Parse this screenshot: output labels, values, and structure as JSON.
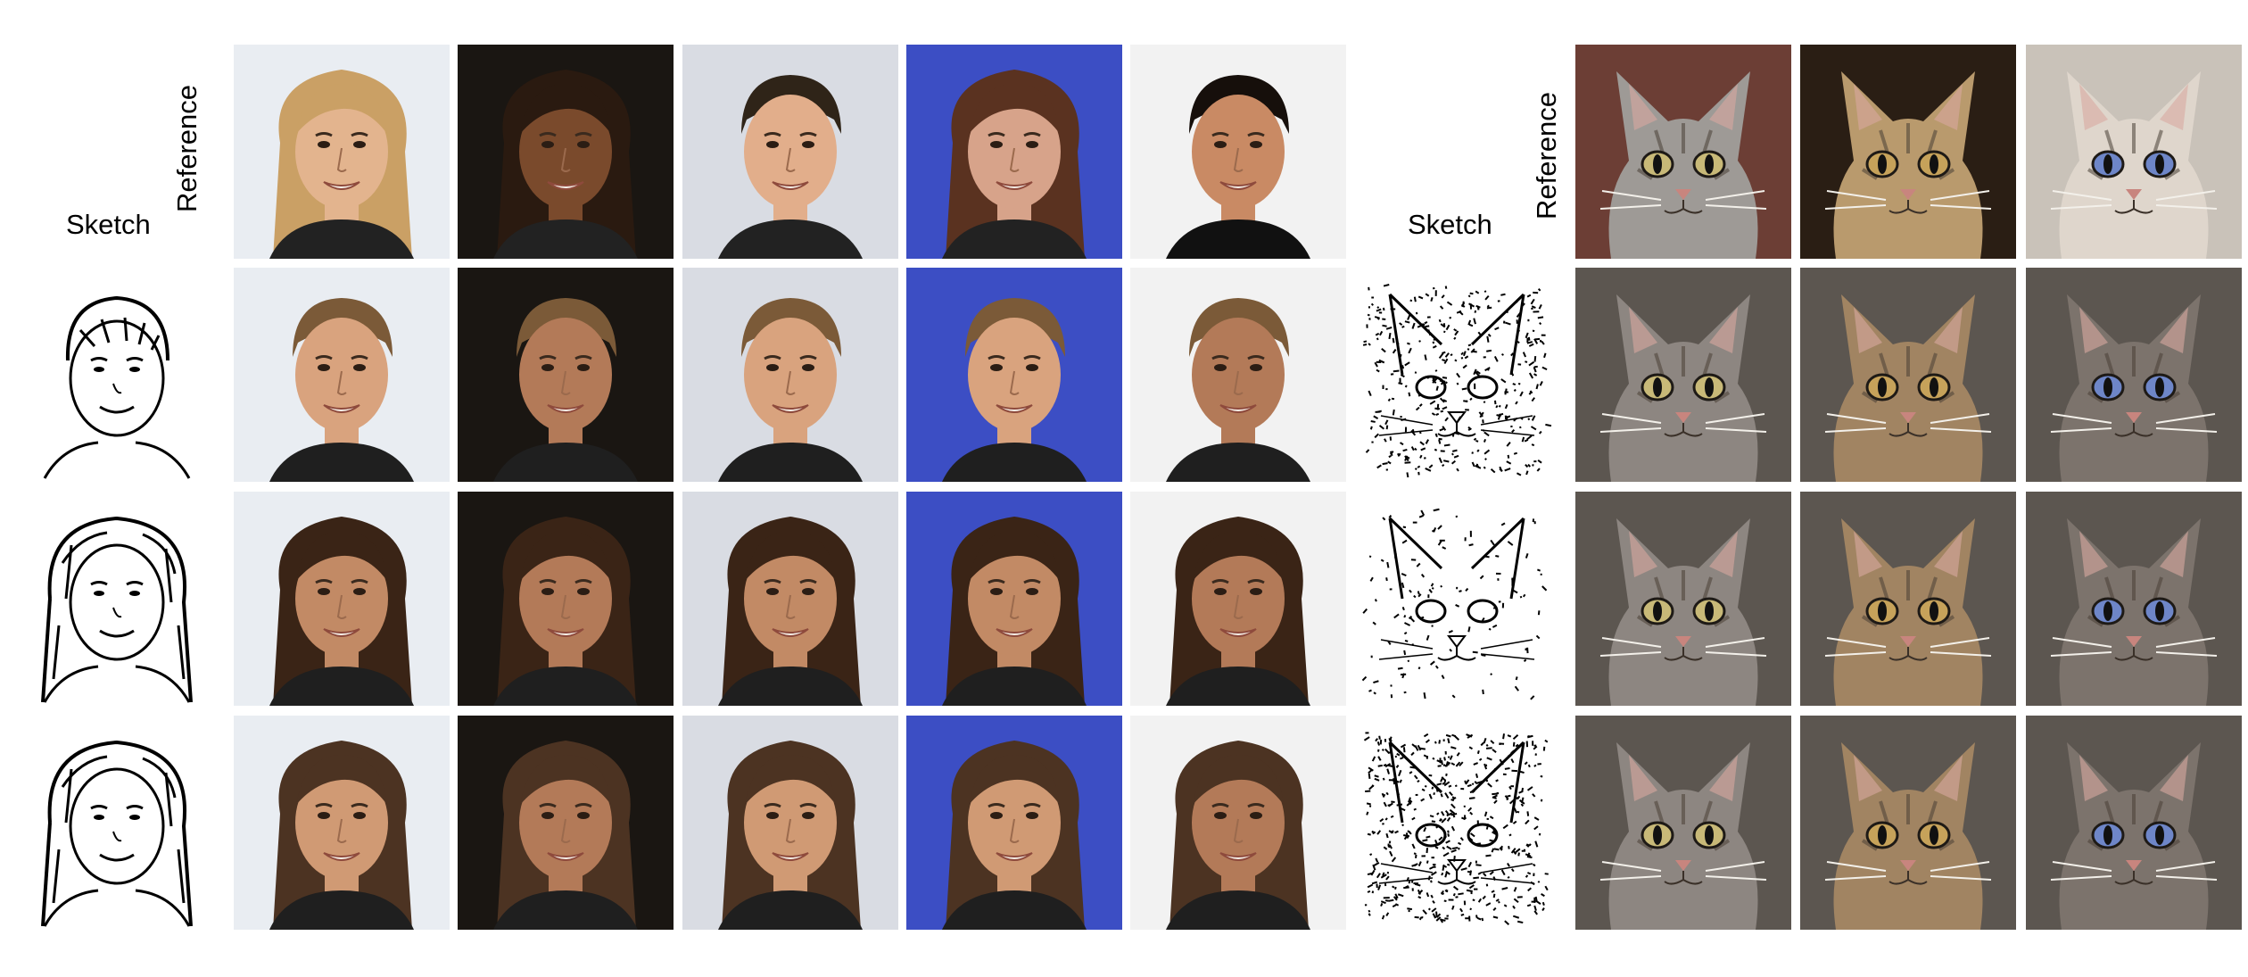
{
  "labels": {
    "faces_sketch": "Sketch",
    "faces_reference": "Reference",
    "cats_sketch": "Sketch",
    "cats_reference": "Reference"
  },
  "faces": {
    "references": [
      {
        "name": "blonde-smiling-woman",
        "tone": "#e3b48e",
        "hair": "#caa065",
        "bg": "#e9edf2"
      },
      {
        "name": "dark-haired-woman",
        "tone": "#7a4a2c",
        "hair": "#2a1a10",
        "bg": "#1a1612"
      },
      {
        "name": "young-man",
        "tone": "#e2ae8b",
        "hair": "#2f2418",
        "bg": "#d9dce3"
      },
      {
        "name": "brunette-woman-blue-bg",
        "tone": "#d7a38a",
        "hair": "#5a3220",
        "bg": "#3c4ec4"
      },
      {
        "name": "dark-haired-man",
        "tone": "#c98a64",
        "hair": "#160f0b",
        "bg": "#f2f2f2"
      }
    ],
    "rows": [
      {
        "sketch": "male-sketch-short-hair",
        "hair": "#7b5a38",
        "skin": "#d9a37e"
      },
      {
        "sketch": "female-sketch-long-hair",
        "hair": "#3a2416",
        "skin": "#c28a65"
      },
      {
        "sketch": "female-sketch-curly-hair",
        "hair": "#4c3322",
        "skin": "#d09a74"
      }
    ]
  },
  "cats": {
    "references": [
      {
        "name": "grey-tabby-kitten",
        "fur": "#9e9a96",
        "bg": "#6c3e35"
      },
      {
        "name": "golden-tabby-cat",
        "fur": "#b99a6d",
        "bg": "#2a1e14"
      },
      {
        "name": "siamese-cat",
        "fur": "#dfd6cc",
        "bg": "#c9c2b9"
      }
    ],
    "rows": [
      {
        "sketch": "cat-sketch-dense"
      },
      {
        "sketch": "cat-sketch-sparse"
      },
      {
        "sketch": "cat-sketch-noisy"
      }
    ]
  },
  "colors": {
    "ink": "#000000",
    "sketch_bg": "#ffffff"
  }
}
